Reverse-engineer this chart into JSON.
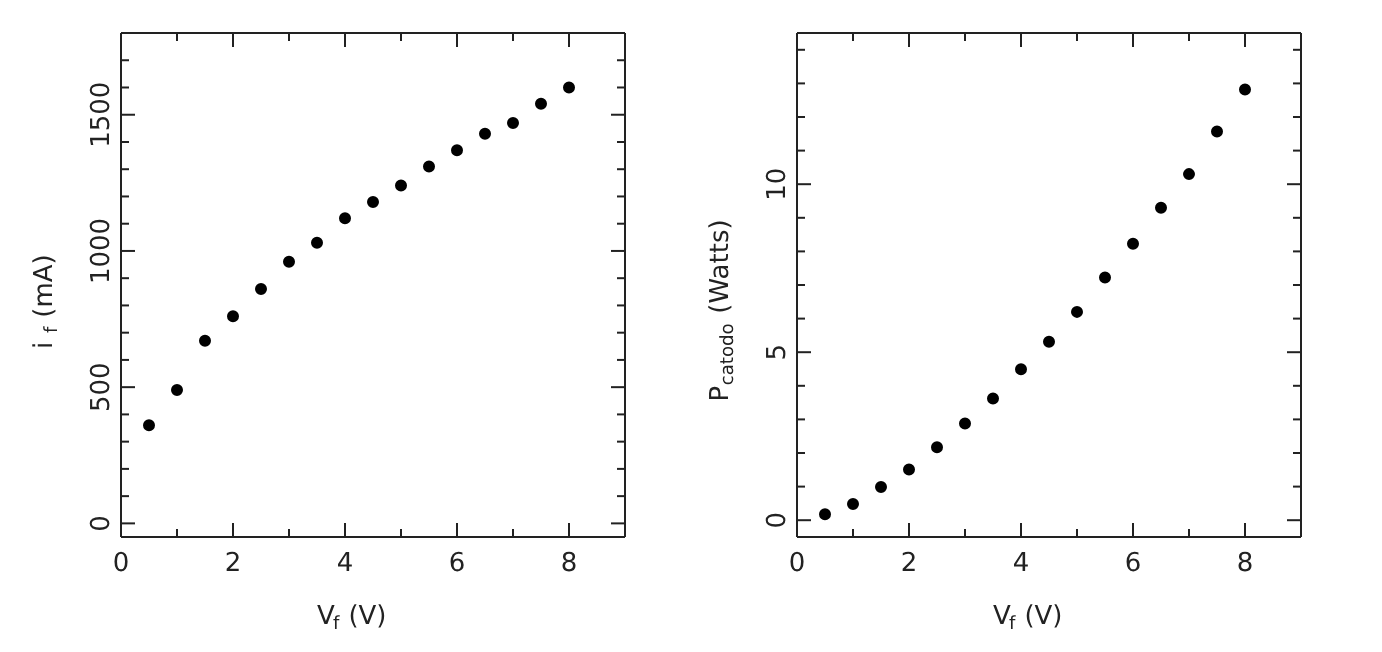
{
  "chart_data": [
    {
      "type": "scatter",
      "xlabel": "V$_{f}$  (V)",
      "ylabel": "i$_{f}$  (mA)",
      "marker": "circle",
      "xlim": [
        0,
        9
      ],
      "ylim": [
        -50,
        1800
      ],
      "xticks": [
        0,
        {
          "value": 1,
          "label": null
        },
        2,
        {
          "value": 3,
          "label": null
        },
        4,
        {
          "value": 5,
          "label": null
        },
        6,
        {
          "value": 7,
          "label": null
        },
        8,
        {
          "value": 9,
          "label": null
        }
      ],
      "yticks": [
        0,
        {
          "value": 100,
          "label": null
        },
        {
          "value": 200,
          "label": null
        },
        {
          "value": 300,
          "label": null
        },
        {
          "value": 400,
          "label": null
        },
        500,
        {
          "value": 600,
          "label": null
        },
        {
          "value": 700,
          "label": null
        },
        {
          "value": 800,
          "label": null
        },
        {
          "value": 900,
          "label": null
        },
        1000,
        {
          "value": 1100,
          "label": null
        },
        {
          "value": 1200,
          "label": null
        },
        {
          "value": 1300,
          "label": null
        },
        {
          "value": 1400,
          "label": null
        },
        1500,
        {
          "value": 1600,
          "label": null
        },
        {
          "value": 1700,
          "label": null
        }
      ],
      "x": [
        0.5,
        1,
        1.5,
        2,
        2.5,
        3,
        3.5,
        4,
        4.5,
        5,
        5.5,
        6,
        6.5,
        7,
        7.5,
        8
      ],
      "series": [
        {
          "color": "#000000",
          "values": [
            360,
            490,
            670,
            760,
            860,
            960,
            1030,
            1120,
            1180,
            1240,
            1310,
            1370,
            1430,
            1470,
            1540,
            1600
          ]
        }
      ]
    },
    {
      "type": "scatter",
      "xlabel": "V$_{f}$  (V)",
      "ylabel": "P$_{catodo}$  (Watts)",
      "marker": "circle",
      "xlim": [
        0,
        9
      ],
      "ylim": [
        -0.5,
        14.5
      ],
      "xticks": [
        0,
        {
          "value": 1,
          "label": null
        },
        2,
        {
          "value": 3,
          "label": null
        },
        4,
        {
          "value": 5,
          "label": null
        },
        6,
        {
          "value": 7,
          "label": null
        },
        8,
        {
          "value": 9,
          "label": null
        }
      ],
      "yticks": [
        0,
        {
          "value": 1,
          "label": null
        },
        {
          "value": 2,
          "label": null
        },
        {
          "value": 3,
          "label": null
        },
        {
          "value": 4,
          "label": null
        },
        5,
        {
          "value": 6,
          "label": null
        },
        {
          "value": 7,
          "label": null
        },
        {
          "value": 8,
          "label": null
        },
        {
          "value": 9,
          "label": null
        },
        10,
        {
          "value": 11,
          "label": null
        },
        {
          "value": 12,
          "label": null
        },
        {
          "value": 13,
          "label": null
        },
        {
          "value": 14,
          "label": null
        }
      ],
      "x": [
        0.5,
        1,
        1.5,
        2,
        2.5,
        3,
        3.5,
        4,
        4.5,
        5,
        5.5,
        6,
        6.5,
        7,
        7.5,
        8
      ],
      "series": [
        {
          "color": "#000000",
          "values": [
            0.18,
            0.48,
            0.99,
            1.51,
            2.17,
            2.88,
            3.62,
            4.49,
            5.31,
            6.2,
            7.22,
            8.23,
            9.3,
            10.3,
            11.57,
            12.82
          ]
        }
      ]
    }
  ]
}
